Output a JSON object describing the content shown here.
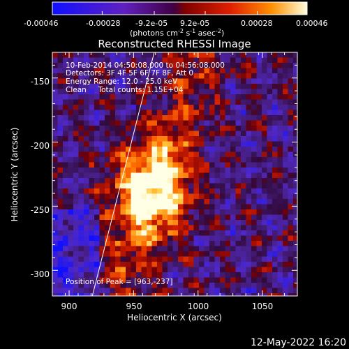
{
  "colorbar": {
    "ticks": [
      "-0.00046",
      "-0.00028",
      "-9.2e-05",
      "9.2e-05",
      "0.00028",
      "0.00046"
    ],
    "tick_values": [
      -0.00046,
      -0.00028,
      -9.2e-05,
      9.2e-05,
      0.00028,
      0.00046
    ],
    "unit_label": "(photons cm",
    "unit_sup1": "-2",
    "unit_mid": " s",
    "unit_sup2": "-1",
    "unit_end": " asec",
    "unit_sup3": "-2",
    "unit_close": ")"
  },
  "chart_data": {
    "type": "heatmap",
    "title": "Reconstructed RHESSI Image",
    "xlabel": "Heliocentric X (arcsec)",
    "ylabel": "Heliocentric Y (arcsec)",
    "xlim": [
      887,
      1077
    ],
    "ylim": [
      -320,
      -130
    ],
    "xticks": [
      900,
      950,
      1000,
      1050
    ],
    "yticks": [
      -150,
      -200,
      -250,
      -300
    ],
    "peak": [
      963,
      -237
    ],
    "limb_line": [
      [
        918,
        -320
      ],
      [
        966,
        -130
      ]
    ],
    "annotations": [
      "10-Feb-2014 04:50:08.000 to 04:56:08.000",
      "Detectors: 3F 4F 5F 6F 7F 8F, Att 0",
      "Energy Range: 12.0 - 25.0 keV",
      "Clean     Total counts: 1.15E+04"
    ],
    "peak_label": "Position of Peak = [963,-237]"
  },
  "footer": {
    "date": "12-May-2022 16:20"
  }
}
